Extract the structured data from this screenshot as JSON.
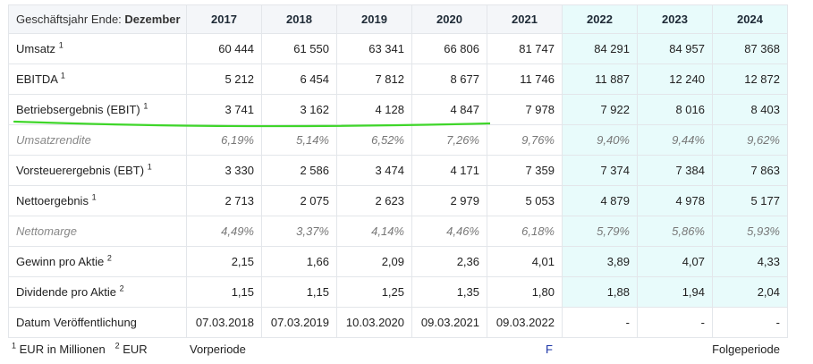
{
  "header": {
    "label_prefix": "Geschäftsjahr Ende:",
    "label_month": "Dezember",
    "years": [
      "2017",
      "2018",
      "2019",
      "2020",
      "2021",
      "2022",
      "2023",
      "2024"
    ]
  },
  "rows": [
    {
      "label": "Umsatz",
      "sup": "1",
      "values": [
        "60 444",
        "61 550",
        "63 341",
        "66 806",
        "81 747",
        "84 291",
        "84 957",
        "87 368"
      ]
    },
    {
      "label": "EBITDA",
      "sup": "1",
      "values": [
        "5 212",
        "6 454",
        "7 812",
        "8 677",
        "11 746",
        "11 887",
        "12 240",
        "12 872"
      ]
    },
    {
      "label": "Betriebsergebnis (EBIT)",
      "sup": "1",
      "values": [
        "3 741",
        "3 162",
        "4 128",
        "4 847",
        "7 978",
        "7 922",
        "8 016",
        "8 403"
      ]
    },
    {
      "label": "Umsatzrendite",
      "sup": "",
      "values": [
        "6,19%",
        "5,14%",
        "6,52%",
        "7,26%",
        "9,76%",
        "9,40%",
        "9,44%",
        "9,62%"
      ]
    },
    {
      "label": "Vorsteuerergebnis (EBT)",
      "sup": "1",
      "values": [
        "3 330",
        "2 586",
        "3 474",
        "4 171",
        "7 359",
        "7 374",
        "7 384",
        "7 863"
      ]
    },
    {
      "label": "Nettoergebnis",
      "sup": "1",
      "values": [
        "2 713",
        "2 075",
        "2 623",
        "2 979",
        "5 053",
        "4 879",
        "4 978",
        "5 177"
      ]
    },
    {
      "label": "Nettomarge",
      "sup": "",
      "values": [
        "4,49%",
        "3,37%",
        "4,14%",
        "4,46%",
        "6,18%",
        "5,79%",
        "5,86%",
        "5,93%"
      ]
    },
    {
      "label": "Gewinn pro Aktie",
      "sup": "2",
      "values": [
        "2,15",
        "1,66",
        "2,09",
        "2,36",
        "4,01",
        "3,89",
        "4,07",
        "4,33"
      ]
    },
    {
      "label": "Dividende pro Aktie",
      "sup": "2",
      "values": [
        "1,15",
        "1,15",
        "1,25",
        "1,35",
        "1,80",
        "1,88",
        "1,94",
        "2,04"
      ]
    },
    {
      "label": "Datum Veröffentlichung",
      "sup": "",
      "values": [
        "07.03.2018",
        "07.03.2019",
        "10.03.2020",
        "09.03.2021",
        "09.03.2022",
        "-",
        "-",
        "-"
      ]
    }
  ],
  "footer": {
    "fn1_num": "1",
    "fn1_text": "EUR in Millionen",
    "fn2_num": "2",
    "fn2_text": "EUR",
    "prev_label": "Vorperiode",
    "forecast_marker": "F",
    "next_label": "Folgeperiode"
  },
  "colors": {
    "forecast_bg": "#e8fbfb",
    "highlight_stroke": "#3fd62a"
  }
}
